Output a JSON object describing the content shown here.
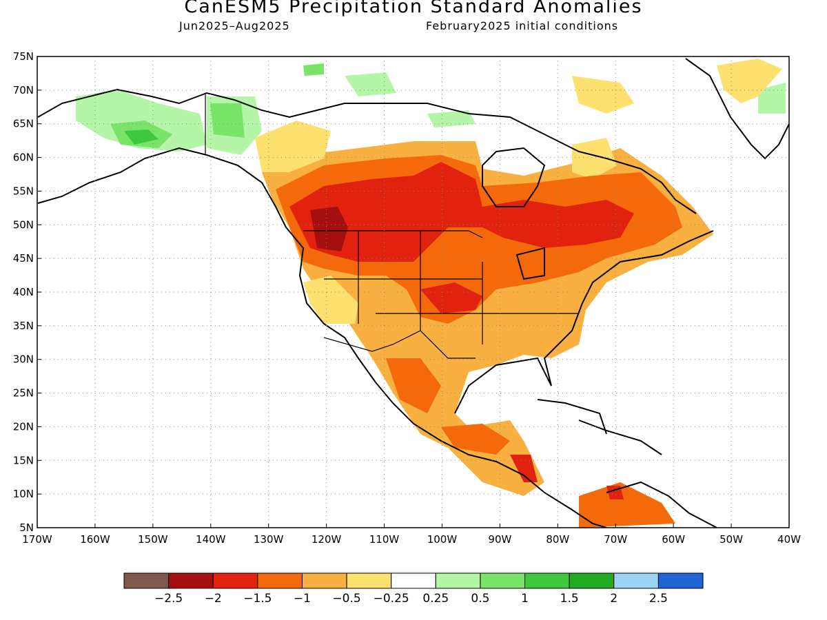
{
  "title": "CanESM5 Precipitation Standard Anomalies",
  "subtitle_left": "Jun2025–Aug2025",
  "subtitle_right": "February2025 initial conditions",
  "lat_ticks": [
    "75N",
    "70N",
    "65N",
    "60N",
    "55N",
    "50N",
    "45N",
    "40N",
    "35N",
    "30N",
    "25N",
    "20N",
    "15N",
    "10N",
    "5N"
  ],
  "lon_ticks": [
    "170W",
    "160W",
    "150W",
    "140W",
    "130W",
    "120W",
    "110W",
    "100W",
    "90W",
    "80W",
    "70W",
    "60W",
    "50W",
    "40W"
  ],
  "colorbar": {
    "colors": [
      "#7f5a4c",
      "#a50f0f",
      "#e0220f",
      "#f46a0a",
      "#f8b040",
      "#fce070",
      "#ffffff",
      "#b5f5a8",
      "#7ae36a",
      "#3ec83e",
      "#22aa22",
      "#9cd4f5",
      "#1f64d4"
    ],
    "labels": [
      "-2.5",
      "-2",
      "-1.5",
      "-1",
      "-0.5",
      "-0.25",
      "0.25",
      "0.5",
      "1",
      "1.5",
      "2",
      "2.5"
    ]
  },
  "legend_class_colors": {
    "strong_dry": "#a50f0f",
    "dry2": "#e0220f",
    "dry1": "#f46a0a",
    "dry05": "#f8b040",
    "dry025": "#fce070",
    "wet05": "#b5f5a8",
    "wet1": "#7ae36a",
    "wet15": "#3ec83e"
  }
}
